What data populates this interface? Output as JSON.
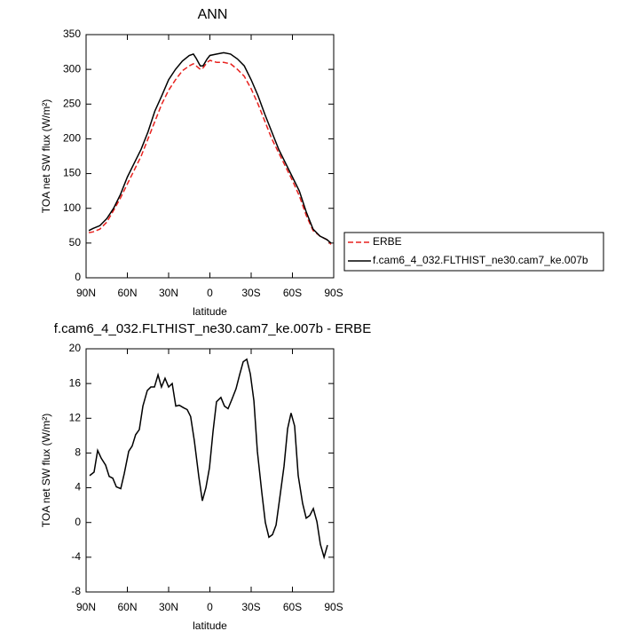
{
  "chart_data": [
    {
      "type": "line",
      "title": "ANN",
      "xlabel": "latitude",
      "ylabel": "TOA net SW flux (W/m²)",
      "x": [
        88,
        85,
        80,
        75,
        70,
        65,
        60,
        55,
        50,
        45,
        40,
        35,
        30,
        25,
        20,
        15,
        12,
        10,
        7,
        5,
        2,
        0,
        -5,
        -10,
        -15,
        -20,
        -25,
        -30,
        -35,
        -40,
        -45,
        -50,
        -55,
        -60,
        -65,
        -70,
        -75,
        -80,
        -85,
        -88
      ],
      "series": [
        {
          "name": "ERBE",
          "color": "#e8211e",
          "line_style": "dashed",
          "values": [
            65,
            66,
            70,
            80,
            97,
            115,
            135,
            155,
            175,
            200,
            225,
            250,
            270,
            285,
            298,
            305,
            308,
            305,
            300,
            302,
            310,
            313,
            310,
            310,
            308,
            300,
            290,
            272,
            250,
            225,
            200,
            180,
            160,
            140,
            118,
            90,
            68,
            60,
            55,
            48
          ]
        },
        {
          "name": "f.cam6_4_032.FLTHIST_ne30.cam7_ke.007b",
          "color": "#000000",
          "line_style": "solid",
          "values": [
            68,
            71,
            75,
            85,
            100,
            120,
            145,
            165,
            185,
            210,
            240,
            262,
            285,
            300,
            312,
            320,
            322,
            316,
            305,
            305,
            315,
            320,
            322,
            324,
            322,
            315,
            305,
            285,
            262,
            235,
            210,
            185,
            165,
            145,
            125,
            95,
            70,
            60,
            55,
            50
          ]
        }
      ],
      "xlim": [
        90,
        -90
      ],
      "xticks": [
        {
          "value": 90,
          "label": "90N"
        },
        {
          "value": 60,
          "label": "60N"
        },
        {
          "value": 30,
          "label": "30N"
        },
        0,
        {
          "value": -30,
          "label": "30S"
        },
        {
          "value": -60,
          "label": "60S"
        },
        {
          "value": -90,
          "label": "90S"
        }
      ],
      "ylim": [
        0,
        350
      ],
      "yticks": [
        0,
        50,
        100,
        150,
        200,
        250,
        300,
        350
      ],
      "legend": "right"
    },
    {
      "type": "line",
      "title": "f.cam6_4_032.FLTHIST_ne30.cam7_ke.007b - ERBE",
      "xlabel": "latitude",
      "ylabel": "TOA net SW flux (W/m²)",
      "x": [
        87.4,
        84.2,
        81.6,
        79,
        75.8,
        73.2,
        70.6,
        68,
        64.8,
        62.3,
        59,
        56.5,
        54,
        51.3,
        48.7,
        45.5,
        42.9,
        40.3,
        37.7,
        35.2,
        32.6,
        30,
        27.4,
        24.8,
        22.3,
        19,
        16.5,
        14,
        11.3,
        8,
        5.5,
        2.9,
        0.3,
        -2.3,
        -4.8,
        -8,
        -10.6,
        -13.2,
        -15.8,
        -19,
        -21.6,
        -24.2,
        -26.8,
        -29.4,
        -32,
        -34.5,
        -37.7,
        -40.3,
        -42.9,
        -45.5,
        -48.1,
        -50.6,
        -53.9,
        -56.5,
        -59,
        -61.6,
        -64.2,
        -67.4,
        -70,
        -72.6,
        -75.2,
        -77.8,
        -80.3,
        -83,
        -85.5
      ],
      "values": [
        5.4,
        5.8,
        8.3,
        7.4,
        6.6,
        5.3,
        5.1,
        4.1,
        3.9,
        5.6,
        8.2,
        8.8,
        10.1,
        10.7,
        13.4,
        15.2,
        15.6,
        15.6,
        17,
        15.6,
        16.6,
        15.6,
        16,
        13.4,
        13.5,
        13.2,
        13,
        12.2,
        9.4,
        5.2,
        2.5,
        4,
        6.3,
        10.5,
        13.9,
        14.4,
        13.4,
        13.1,
        14.1,
        15.4,
        17,
        18.5,
        18.8,
        17.1,
        14,
        8.2,
        3.5,
        0,
        -1.7,
        -1.4,
        -0.3,
        2.6,
        6.5,
        10.8,
        12.6,
        11.1,
        5.4,
        2.2,
        0.5,
        0.8,
        1.6,
        0.1,
        -2.5,
        -4,
        -2.6
      ],
      "color": "#000000",
      "xlim": [
        90,
        -90
      ],
      "xticks": [
        {
          "value": 90,
          "label": "90N"
        },
        {
          "value": 60,
          "label": "60N"
        },
        {
          "value": 30,
          "label": "30N"
        },
        0,
        {
          "value": -30,
          "label": "30S"
        },
        {
          "value": -60,
          "label": "60S"
        },
        {
          "value": -90,
          "label": "90S"
        }
      ],
      "ylim": [
        -8,
        20
      ],
      "yticks": [
        -8,
        -4,
        0,
        4,
        8,
        12,
        16,
        20
      ]
    }
  ]
}
